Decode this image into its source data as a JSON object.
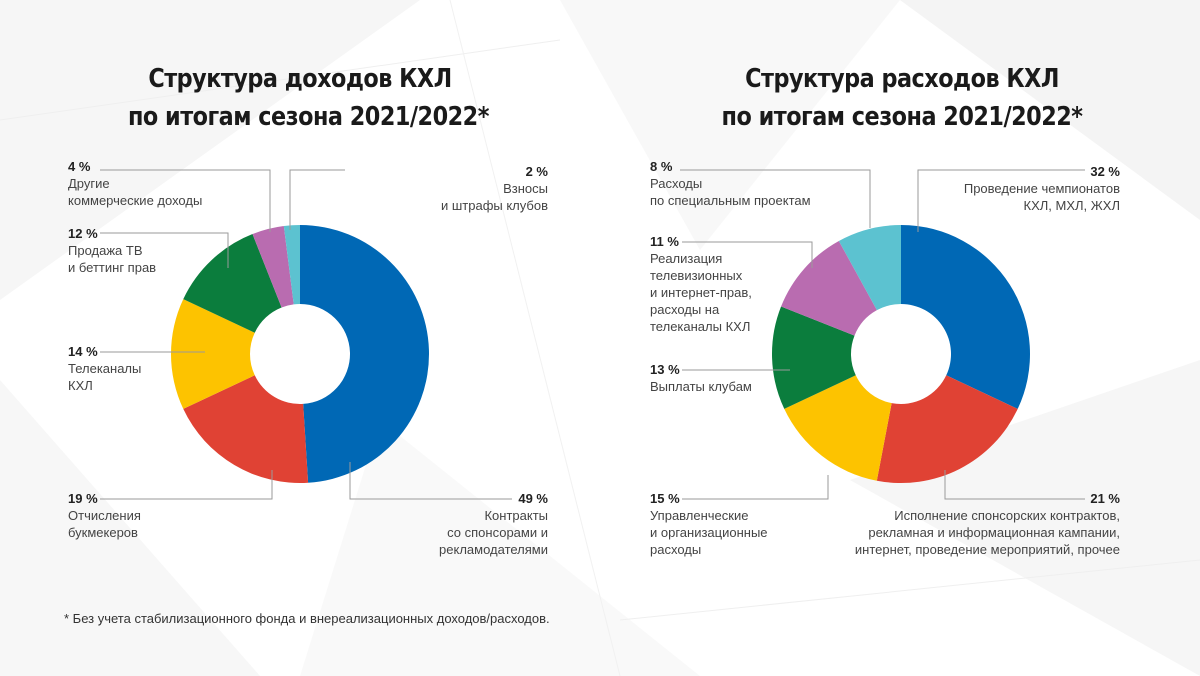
{
  "chart_data": [
    {
      "type": "pie",
      "variant": "donut",
      "title": [
        "Структура доходов КХЛ",
        "по итогам сезона 2021/2022*"
      ],
      "slices": [
        {
          "label": "Контракты\nсо спонсорами и\nрекламодателями",
          "value": 49,
          "value_label": "49 %",
          "color": "#0068B5"
        },
        {
          "label": "Отчисления\nбукмекеров",
          "value": 19,
          "value_label": "19 %",
          "color": "#E04234"
        },
        {
          "label": "Телеканалы\nКХЛ",
          "value": 14,
          "value_label": "14 %",
          "color": "#FDC300"
        },
        {
          "label": "Продажа ТВ\nи беттинг прав",
          "value": 12,
          "value_label": "12 %",
          "color": "#0B7D3D"
        },
        {
          "label": "Другие\nкоммерческие доходы",
          "value": 4,
          "value_label": "4 %",
          "color": "#B96CB0"
        },
        {
          "label": "Взносы\nи штрафы клубов",
          "value": 2,
          "value_label": "2 %",
          "color": "#5CC2D0"
        }
      ]
    },
    {
      "type": "pie",
      "variant": "donut",
      "title": [
        "Структура расходов КХЛ",
        "по итогам сезона 2021/2022*"
      ],
      "slices": [
        {
          "label": "Проведение чемпионатов\nКХЛ, МХЛ, ЖХЛ",
          "value": 32,
          "value_label": "32 %",
          "color": "#0068B5"
        },
        {
          "label": "Исполнение спонсорских контрактов,\nрекламная и информационная кампании,\nинтернет, проведение мероприятий, прочее",
          "value": 21,
          "value_label": "21 %",
          "color": "#E04234"
        },
        {
          "label": "Управленческие\nи организационные\nрасходы",
          "value": 15,
          "value_label": "15 %",
          "color": "#FDC300"
        },
        {
          "label": "Выплаты клубам",
          "value": 13,
          "value_label": "13 %",
          "color": "#0B7D3D"
        },
        {
          "label": "Реализация\nтелевизионных\nи интернет-прав,\nрасходы на\nтелеканалы КХЛ",
          "value": 11,
          "value_label": "11 %",
          "color": "#B96CB0"
        },
        {
          "label": "Расходы\nпо специальным проектам",
          "value": 8,
          "value_label": "8 %",
          "color": "#5CC2D0"
        }
      ]
    }
  ],
  "footnote": "* Без учета стабилизационного фонда и внереализационных доходов/расходов.",
  "colors": {
    "leader_line": "#9a9a9a",
    "title": "#1a1a1a"
  }
}
